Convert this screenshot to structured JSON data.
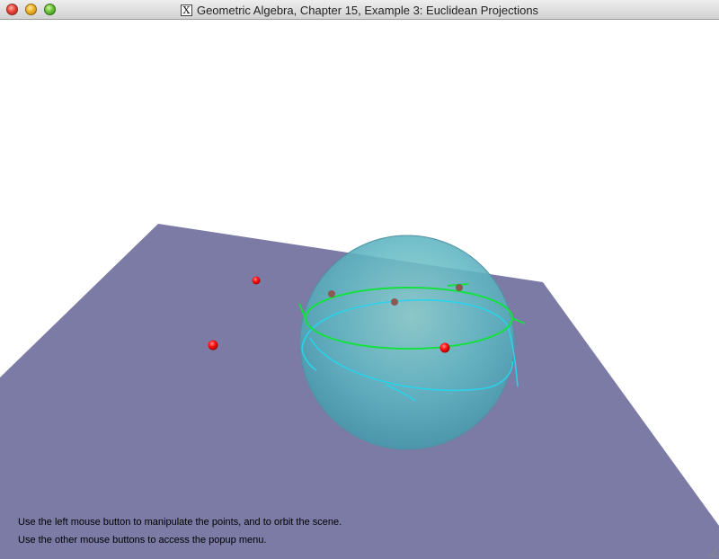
{
  "window": {
    "title": "Geometric Algebra, Chapter 15, Example 3: Euclidean Projections",
    "title_icon_glyph": "X"
  },
  "scene": {
    "plane_color": "#7b7ba6",
    "sphere_color": "#5fb6c0",
    "green_circle_color": "#15e040",
    "cyan_curve_color": "#2ad2ea",
    "point_color": "#ff0000",
    "projected_point_color": "#8a5a52"
  },
  "instructions": {
    "line1": "Use the left mouse button to manipulate the points, and to orbit the scene.",
    "line2": "Use the other mouse buttons to access the popup menu."
  }
}
